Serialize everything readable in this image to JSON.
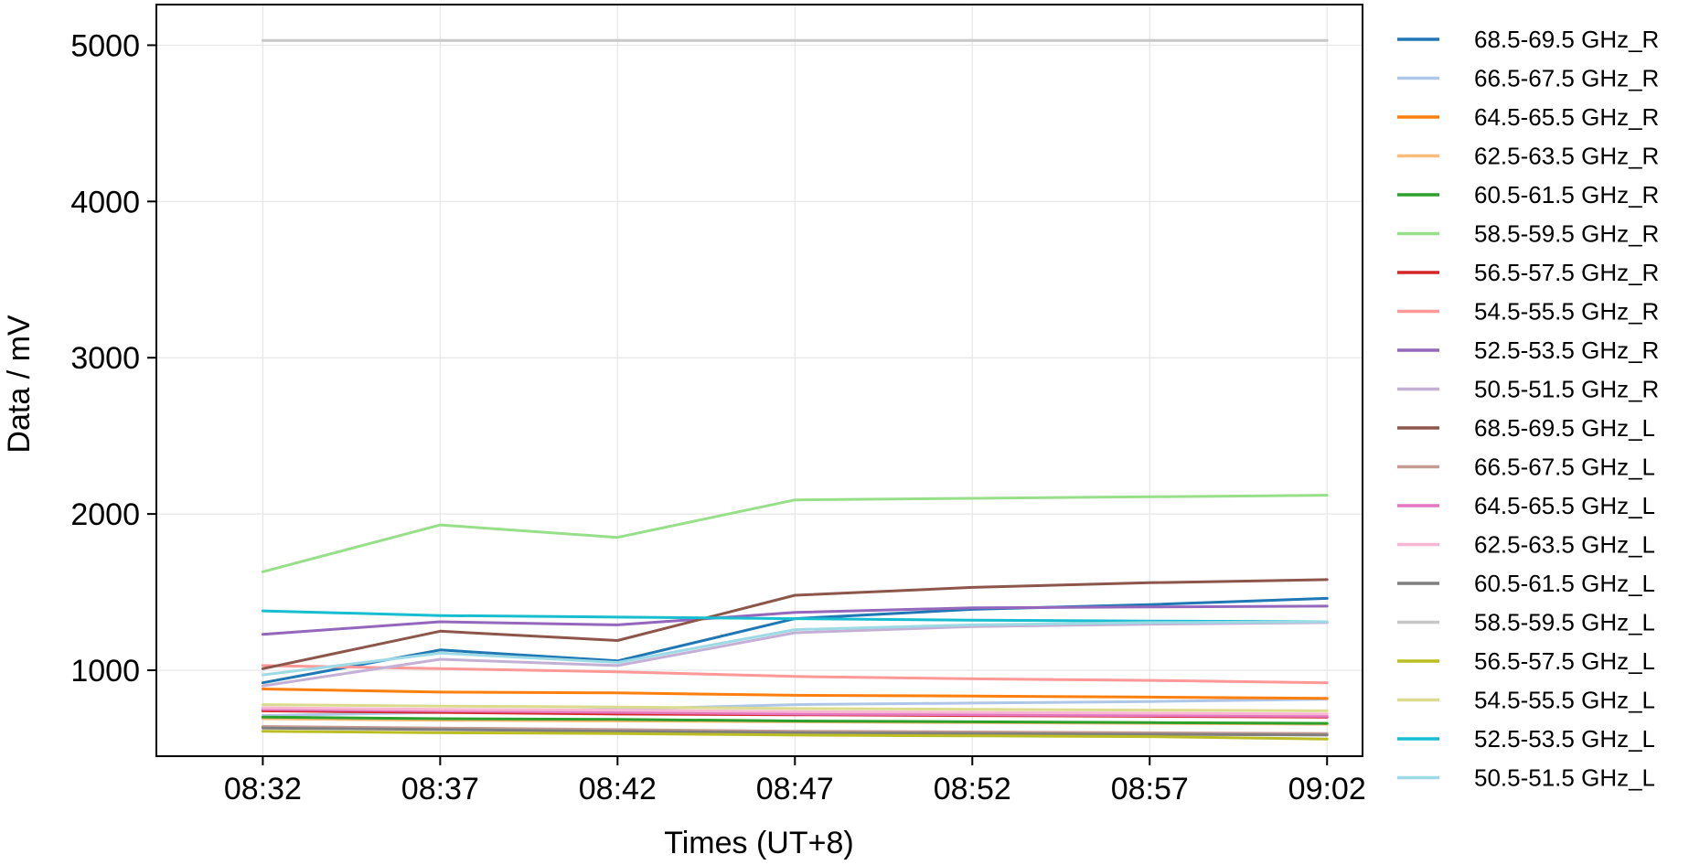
{
  "chart_data": {
    "type": "line",
    "xlabel": "Times (UT+8)",
    "ylabel": "Data / mV",
    "x": [
      "08:32",
      "08:37",
      "08:42",
      "08:47",
      "08:52",
      "08:57",
      "09:02"
    ],
    "x_tick_labels": [
      "08:32",
      "08:37",
      "08:42",
      "08:47",
      "08:52",
      "08:57",
      "09:02"
    ],
    "y_ticks": [
      1000,
      2000,
      3000,
      4000,
      5000
    ],
    "y_tick_labels": [
      "1000",
      "2000",
      "3000",
      "4000",
      "5000"
    ],
    "xlim": [
      "08:29",
      "09:03"
    ],
    "ylim": [
      450,
      5260
    ],
    "grid": true,
    "legend_position": "outside-right",
    "series": [
      {
        "name": "68.5-69.5 GHz_R",
        "color": "#1f77b4",
        "values": [
          920,
          1130,
          1060,
          1330,
          1390,
          1420,
          1460
        ]
      },
      {
        "name": "66.5-67.5 GHz_R",
        "color": "#aec7e8",
        "values": [
          710,
          730,
          750,
          780,
          790,
          800,
          815
        ]
      },
      {
        "name": "64.5-65.5 GHz_R",
        "color": "#ff7f0e",
        "values": [
          880,
          860,
          855,
          840,
          835,
          828,
          820
        ]
      },
      {
        "name": "62.5-63.5 GHz_R",
        "color": "#ffbb78",
        "values": [
          690,
          680,
          675,
          670,
          665,
          660,
          655
        ]
      },
      {
        "name": "60.5-61.5 GHz_R",
        "color": "#2ca02c",
        "values": [
          700,
          690,
          685,
          675,
          670,
          665,
          660
        ]
      },
      {
        "name": "58.5-59.5 GHz_R",
        "color": "#98df8a",
        "values": [
          1630,
          1930,
          1850,
          2090,
          2100,
          2110,
          2120
        ]
      },
      {
        "name": "56.5-57.5 GHz_R",
        "color": "#d62728",
        "values": [
          740,
          730,
          720,
          715,
          710,
          705,
          700
        ]
      },
      {
        "name": "54.5-55.5 GHz_R",
        "color": "#ff9896",
        "values": [
          1030,
          1010,
          990,
          960,
          945,
          935,
          920
        ]
      },
      {
        "name": "52.5-53.5 GHz_R",
        "color": "#9467bd",
        "values": [
          1230,
          1310,
          1290,
          1370,
          1400,
          1405,
          1410
        ]
      },
      {
        "name": "50.5-51.5 GHz_R",
        "color": "#c5b0d5",
        "values": [
          900,
          1070,
          1030,
          1240,
          1280,
          1295,
          1305
        ]
      },
      {
        "name": "68.5-69.5 GHz_L",
        "color": "#8c564b",
        "values": [
          1010,
          1250,
          1190,
          1480,
          1530,
          1560,
          1580
        ]
      },
      {
        "name": "66.5-67.5 GHz_L",
        "color": "#c49c94",
        "values": [
          640,
          630,
          620,
          610,
          605,
          600,
          595
        ]
      },
      {
        "name": "64.5-65.5 GHz_L",
        "color": "#e377c2",
        "values": [
          750,
          740,
          730,
          720,
          715,
          710,
          705
        ]
      },
      {
        "name": "62.5-63.5 GHz_L",
        "color": "#f7b6d2",
        "values": [
          760,
          750,
          745,
          735,
          730,
          725,
          720
        ]
      },
      {
        "name": "60.5-61.5 GHz_L",
        "color": "#7f7f7f",
        "values": [
          630,
          620,
          610,
          600,
          595,
          590,
          585
        ]
      },
      {
        "name": "58.5-59.5 GHz_L",
        "color": "#c7c7c7",
        "values": [
          5030,
          5030,
          5030,
          5030,
          5030,
          5030,
          5030
        ]
      },
      {
        "name": "56.5-57.5 GHz_L",
        "color": "#bcbd22",
        "values": [
          610,
          600,
          595,
          585,
          580,
          575,
          560
        ]
      },
      {
        "name": "54.5-55.5 GHz_L",
        "color": "#dbdb8d",
        "values": [
          780,
          770,
          765,
          755,
          750,
          745,
          740
        ]
      },
      {
        "name": "52.5-53.5 GHz_L",
        "color": "#17becf",
        "values": [
          1380,
          1350,
          1340,
          1330,
          1320,
          1315,
          1310
        ]
      },
      {
        "name": "50.5-51.5 GHz_L",
        "color": "#9edae5",
        "values": [
          970,
          1110,
          1050,
          1260,
          1290,
          1305,
          1310
        ]
      }
    ]
  }
}
